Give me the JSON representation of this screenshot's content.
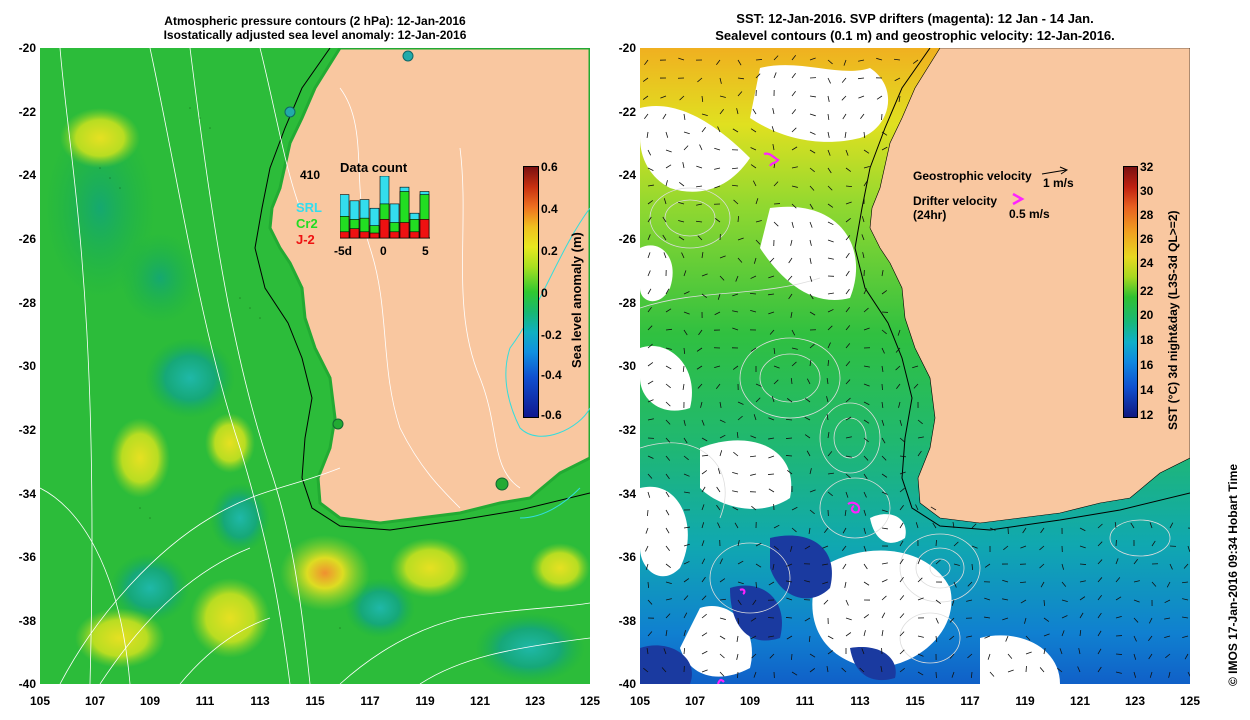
{
  "left_panel": {
    "title_line1": "Atmospheric pressure contours (2 hPa): 12-Jan-2016",
    "title_line2": "Isostatically adjusted sea level anomaly: 12-Jan-2016",
    "y_ticks": [
      "-20",
      "-22",
      "-24",
      "-26",
      "-28",
      "-30",
      "-32",
      "-34",
      "-36",
      "-38",
      "-40"
    ],
    "x_ticks": [
      "105",
      "107",
      "109",
      "111",
      "113",
      "115",
      "117",
      "119",
      "121",
      "123",
      "125"
    ],
    "colorbar": {
      "label": "Sea level anomaly (m)",
      "ticks": [
        "0.6",
        "0.4",
        "0.2",
        "0",
        "-0.2",
        "-0.4",
        "-0.6"
      ],
      "range": [
        -0.6,
        0.6
      ]
    },
    "inset": {
      "title": "Data count",
      "max_label": "410",
      "legend": [
        {
          "name": "SRL",
          "color": "#33ddee"
        },
        {
          "name": "Cr2",
          "color": "#22dd22"
        },
        {
          "name": "J-2",
          "color": "#ee1111"
        }
      ],
      "x_ticks": [
        "-5d",
        "0",
        "5"
      ],
      "bars": [
        {
          "j2": 0.1,
          "cr2": 0.35,
          "srl": 0.7
        },
        {
          "j2": 0.15,
          "cr2": 0.3,
          "srl": 0.6
        },
        {
          "j2": 0.1,
          "cr2": 0.32,
          "srl": 0.62
        },
        {
          "j2": 0.08,
          "cr2": 0.2,
          "srl": 0.48
        },
        {
          "j2": 0.3,
          "cr2": 0.55,
          "srl": 1.0
        },
        {
          "j2": 0.1,
          "cr2": 0.25,
          "srl": 0.55
        },
        {
          "j2": 0.25,
          "cr2": 0.75,
          "srl": 0.82
        },
        {
          "j2": 0.1,
          "cr2": 0.3,
          "srl": 0.4
        },
        {
          "j2": 0.3,
          "cr2": 0.7,
          "srl": 0.75
        }
      ]
    }
  },
  "right_panel": {
    "title_line1": "SST: 12-Jan-2016. SVP drifters (magenta): 12 Jan - 14 Jan.",
    "title_line2": "Sealevel contours (0.1 m) and geostrophic velocity: 12-Jan-2016.",
    "y_ticks": [
      "-20",
      "-22",
      "-24",
      "-26",
      "-28",
      "-30",
      "-32",
      "-34",
      "-36",
      "-38",
      "-40"
    ],
    "x_ticks": [
      "105",
      "107",
      "109",
      "111",
      "113",
      "115",
      "117",
      "119",
      "121",
      "123",
      "125"
    ],
    "colorbar": {
      "label": "SST (°C) 3d night&day (L3S-3d QL>=2)",
      "ticks": [
        "32",
        "30",
        "28",
        "26",
        "24",
        "22",
        "20",
        "18",
        "16",
        "14",
        "12"
      ],
      "range": [
        12,
        32
      ]
    },
    "legend": {
      "geo_label": "Geostrophic velocity",
      "geo_scale": "1 m/s",
      "drifter_label": "Drifter velocity",
      "drifter_sub": "(24hr)",
      "drifter_scale": "0.5 m/s"
    }
  },
  "credit": "© IMOS 17-Jan-2016 09:34 Hobart Time",
  "colors": {
    "land": "#f9c7a0",
    "drifter": "#ff22ff"
  }
}
